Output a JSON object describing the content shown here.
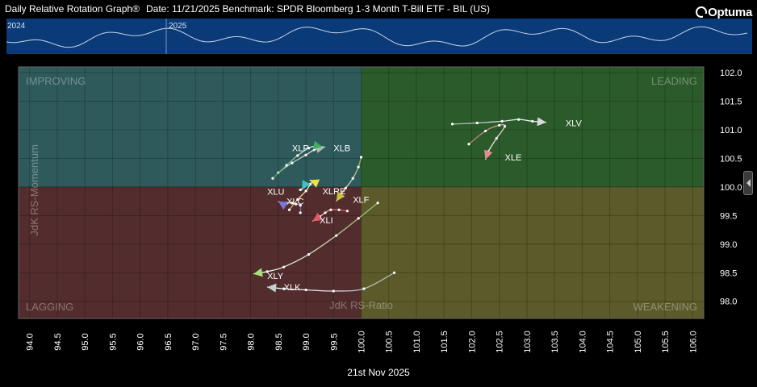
{
  "header": {
    "title": "Daily Relative Rotation Graph®",
    "info": "Date: 11/21/2025  Benchmark: SPDR Bloomberg 1-3 Month T-Bill ETF - BIL (US)",
    "logo": "Optuma"
  },
  "footer": {
    "date_label": "21st Nov 2025"
  },
  "colors": {
    "improving": "#2e5a5c",
    "leading": "#2b5a2b",
    "lagging": "#532c2e",
    "weakening": "#5b5a2a",
    "strip_bg": "#0a3a78",
    "tail": "#ffffff"
  },
  "chart_data": {
    "type": "scatter",
    "title": "",
    "xlabel": "JdK RS-Ratio",
    "ylabel": "JdK RS-Momentum",
    "xlim": [
      93.8,
      106.2
    ],
    "ylim": [
      97.7,
      102.1
    ],
    "center": [
      100.0,
      100.0
    ],
    "grid": true,
    "xticks": [
      "94.0",
      "94.5",
      "95.0",
      "95.5",
      "96.0",
      "96.5",
      "97.0",
      "97.5",
      "98.0",
      "98.5",
      "99.0",
      "99.5",
      "100.0",
      "100.5",
      "101.0",
      "101.5",
      "102.0",
      "102.5",
      "103.0",
      "103.5",
      "104.0",
      "104.5",
      "105.0",
      "105.5",
      "106.0"
    ],
    "yticks": [
      "98.0",
      "98.5",
      "99.0",
      "99.5",
      "100.0",
      "100.5",
      "101.0",
      "101.5",
      "102.0"
    ],
    "quadrants": [
      "IMPROVING",
      "LEADING",
      "LAGGING",
      "WEAKENING"
    ],
    "timeline": {
      "labels": [
        "2024",
        "2025"
      ]
    },
    "series": [
      {
        "name": "XLV",
        "color": "#d8d8d8",
        "label_at": [
          103.7,
          101.12
        ],
        "points": [
          [
            101.65,
            101.1
          ],
          [
            102.1,
            101.12
          ],
          [
            102.55,
            101.15
          ],
          [
            102.85,
            101.18
          ],
          [
            103.1,
            101.15
          ],
          [
            103.35,
            101.13
          ]
        ]
      },
      {
        "name": "XLE",
        "color": "#e88a95",
        "label_at": [
          102.6,
          100.52
        ],
        "points": [
          [
            101.95,
            100.75
          ],
          [
            102.25,
            100.98
          ],
          [
            102.5,
            101.08
          ],
          [
            102.6,
            101.06
          ],
          [
            102.45,
            100.85
          ],
          [
            102.3,
            100.62
          ],
          [
            102.25,
            100.48
          ]
        ]
      },
      {
        "name": "XLB",
        "color": "#b8b8b8",
        "label_at": [
          99.5,
          100.68
        ],
        "points": [
          [
            98.5,
            100.25
          ],
          [
            98.75,
            100.42
          ],
          [
            99.0,
            100.56
          ],
          [
            99.15,
            100.65
          ],
          [
            99.25,
            100.68
          ],
          [
            99.35,
            100.7
          ]
        ]
      },
      {
        "name": "XLP",
        "color": "#3fae5e",
        "label_at": [
          98.75,
          100.68
        ],
        "points": [
          [
            98.4,
            100.15
          ],
          [
            98.65,
            100.38
          ],
          [
            98.85,
            100.55
          ],
          [
            99.05,
            100.68
          ],
          [
            99.2,
            100.72
          ],
          [
            99.3,
            100.7
          ]
        ]
      },
      {
        "name": "XLRE",
        "color": "#f0e040",
        "label_at": [
          99.3,
          99.93
        ],
        "points": [
          [
            98.7,
            99.6
          ],
          [
            98.85,
            99.78
          ],
          [
            99.0,
            99.93
          ],
          [
            99.08,
            100.05
          ],
          [
            99.12,
            100.1
          ],
          [
            99.07,
            100.12
          ]
        ]
      },
      {
        "name": "XLF",
        "color": "#c7c040",
        "label_at": [
          99.85,
          99.78
        ],
        "points": [
          [
            100.0,
            100.52
          ],
          [
            99.95,
            100.35
          ],
          [
            99.85,
            100.15
          ],
          [
            99.72,
            99.98
          ],
          [
            99.62,
            99.85
          ],
          [
            99.55,
            99.75
          ]
        ]
      },
      {
        "name": "XLU",
        "color": "#7878d8",
        "label_at": [
          98.3,
          99.92
        ],
        "points": [
          [
            98.9,
            99.55
          ],
          [
            98.9,
            99.68
          ],
          [
            98.82,
            99.7
          ],
          [
            98.75,
            99.72
          ],
          [
            98.65,
            99.72
          ],
          [
            98.55,
            99.72
          ],
          [
            98.5,
            99.75
          ]
        ]
      },
      {
        "name": "XLC",
        "color": "#3fc4c4",
        "label_at": [
          98.65,
          99.75
        ],
        "points": [
          [
            98.9,
            99.95
          ],
          [
            98.96,
            100.0
          ],
          [
            99.0,
            100.04
          ],
          [
            98.97,
            100.02
          ],
          [
            98.93,
            99.95
          ]
        ]
      },
      {
        "name": "XLI",
        "color": "#e05a6a",
        "label_at": [
          99.25,
          99.42
        ],
        "points": [
          [
            99.75,
            99.58
          ],
          [
            99.6,
            99.6
          ],
          [
            99.45,
            99.6
          ],
          [
            99.35,
            99.55
          ],
          [
            99.25,
            99.48
          ],
          [
            99.12,
            99.4
          ]
        ]
      },
      {
        "name": "XLY",
        "color": "#a8e07a",
        "label_at": [
          98.3,
          98.45
        ],
        "points": [
          [
            100.3,
            99.72
          ],
          [
            99.95,
            99.45
          ],
          [
            99.55,
            99.15
          ],
          [
            99.05,
            98.82
          ],
          [
            98.6,
            98.6
          ],
          [
            98.3,
            98.52
          ],
          [
            98.05,
            98.48
          ]
        ]
      },
      {
        "name": "XLK",
        "color": "#c0d4d4",
        "label_at": [
          98.6,
          98.25
        ],
        "points": [
          [
            100.6,
            98.5
          ],
          [
            100.05,
            98.22
          ],
          [
            99.5,
            98.18
          ],
          [
            99.0,
            98.2
          ],
          [
            98.6,
            98.22
          ],
          [
            98.3,
            98.25
          ]
        ]
      }
    ]
  }
}
